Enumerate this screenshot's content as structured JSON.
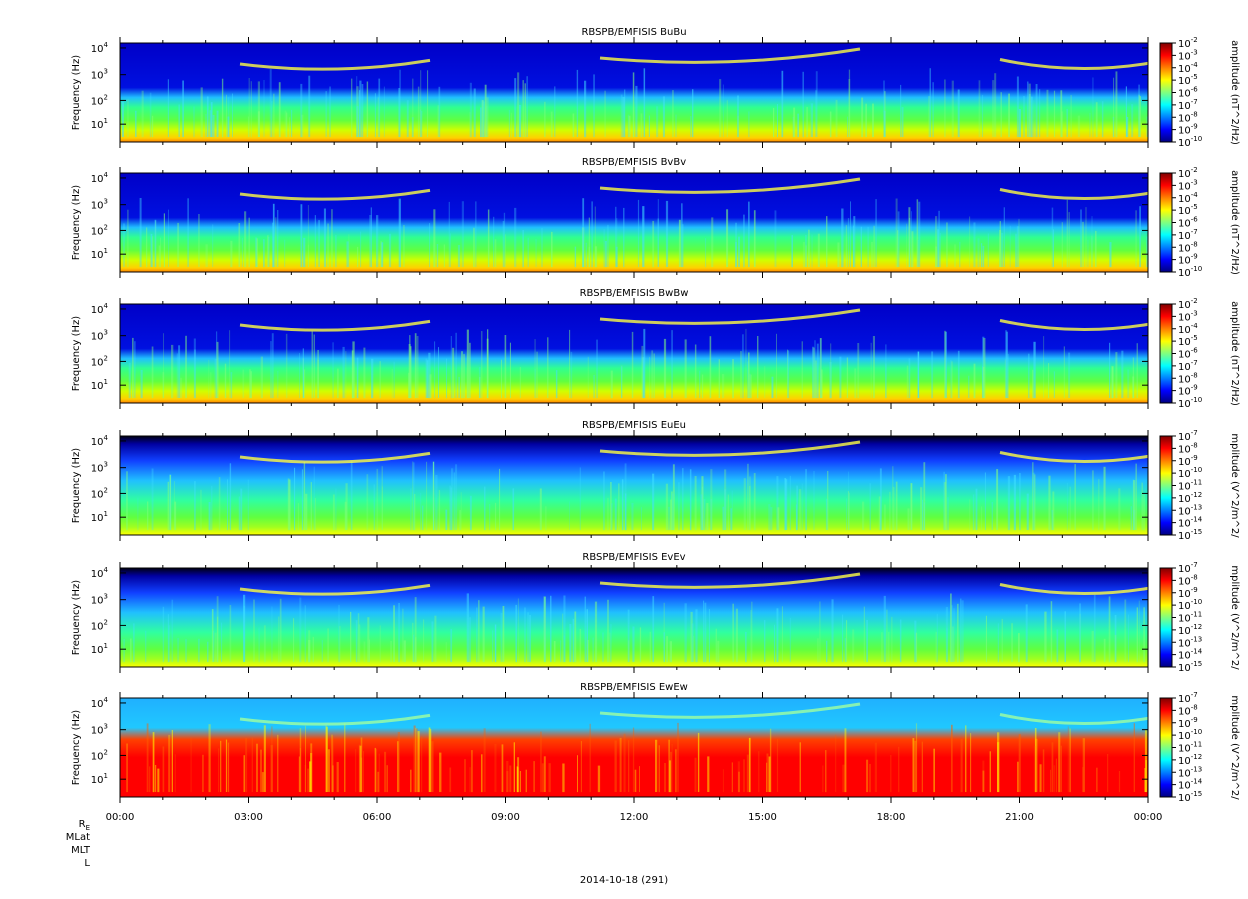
{
  "chart_data": [
    {
      "type": "heatmap",
      "title": "RBSPB/EMFISIS  BuBu",
      "ylabel": "Frequency (Hz)",
      "yscale": "log",
      "yticks": [
        "10",
        "2",
        "3",
        "4"
      ],
      "colorbar_label": "amplitude (nT^2/Hz)",
      "colorbar_ticks": [
        "-2",
        "-3",
        "-4",
        "-5",
        "-6",
        "-7",
        "-8",
        "-9",
        "-10"
      ],
      "colorbar_range": [
        -10,
        -2
      ],
      "kind": "magnetic"
    },
    {
      "type": "heatmap",
      "title": "RBSPB/EMFISIS  BvBv",
      "ylabel": "Frequency (Hz)",
      "yscale": "log",
      "yticks": [
        "10",
        "2",
        "3",
        "4"
      ],
      "colorbar_label": "amplitude (nT^2/Hz)",
      "colorbar_ticks": [
        "-2",
        "-3",
        "-4",
        "-5",
        "-6",
        "-7",
        "-8",
        "-9",
        "-10"
      ],
      "colorbar_range": [
        -10,
        -2
      ],
      "kind": "magnetic"
    },
    {
      "type": "heatmap",
      "title": "RBSPB/EMFISIS  BwBw",
      "ylabel": "Frequency (Hz)",
      "yscale": "log",
      "yticks": [
        "10",
        "2",
        "3",
        "4"
      ],
      "colorbar_label": "amplitude (nT^2/Hz)",
      "colorbar_ticks": [
        "-2",
        "-3",
        "-4",
        "-5",
        "-6",
        "-7",
        "-8",
        "-9",
        "-10"
      ],
      "colorbar_range": [
        -10,
        -2
      ],
      "kind": "magnetic"
    },
    {
      "type": "heatmap",
      "title": "RBSPB/EMFISIS  EuEu",
      "ylabel": "Frequency (Hz)",
      "yscale": "log",
      "yticks": [
        "10",
        "2",
        "3",
        "4"
      ],
      "colorbar_label": "mplitude (V^2/m^2/",
      "colorbar_ticks": [
        "-7",
        "-8",
        "-9",
        "-10",
        "-11",
        "-12",
        "-13",
        "-14",
        "-15"
      ],
      "colorbar_range": [
        -15,
        -7
      ],
      "kind": "electric"
    },
    {
      "type": "heatmap",
      "title": "RBSPB/EMFISIS  EvEv",
      "ylabel": "Frequency (Hz)",
      "yscale": "log",
      "yticks": [
        "10",
        "2",
        "3",
        "4"
      ],
      "colorbar_label": "mplitude (V^2/m^2/",
      "colorbar_ticks": [
        "-7",
        "-8",
        "-9",
        "-10",
        "-11",
        "-12",
        "-13",
        "-14",
        "-15"
      ],
      "colorbar_range": [
        -15,
        -7
      ],
      "kind": "electric"
    },
    {
      "type": "heatmap",
      "title": "RBSPB/EMFISIS  EwEw",
      "ylabel": "Frequency (Hz)",
      "yscale": "log",
      "yticks": [
        "10",
        "2",
        "3",
        "4"
      ],
      "colorbar_label": "mplitude (V^2/m^2/",
      "colorbar_ticks": [
        "-7",
        "-8",
        "-9",
        "-10",
        "-11",
        "-12",
        "-13",
        "-14",
        "-15"
      ],
      "colorbar_range": [
        -15,
        -7
      ],
      "kind": "electric_w"
    }
  ],
  "xaxis": {
    "ticks": [
      "00:00",
      "03:00",
      "06:00",
      "09:00",
      "12:00",
      "15:00",
      "18:00",
      "21:00",
      "00:00"
    ],
    "range_hours": [
      0,
      24
    ]
  },
  "ephemeris_labels": {
    "re": "R",
    "re_sub": "E",
    "mlat": "MLat",
    "mlt": "MLT",
    "l": "L"
  },
  "date": "2014-10-18 (291)"
}
